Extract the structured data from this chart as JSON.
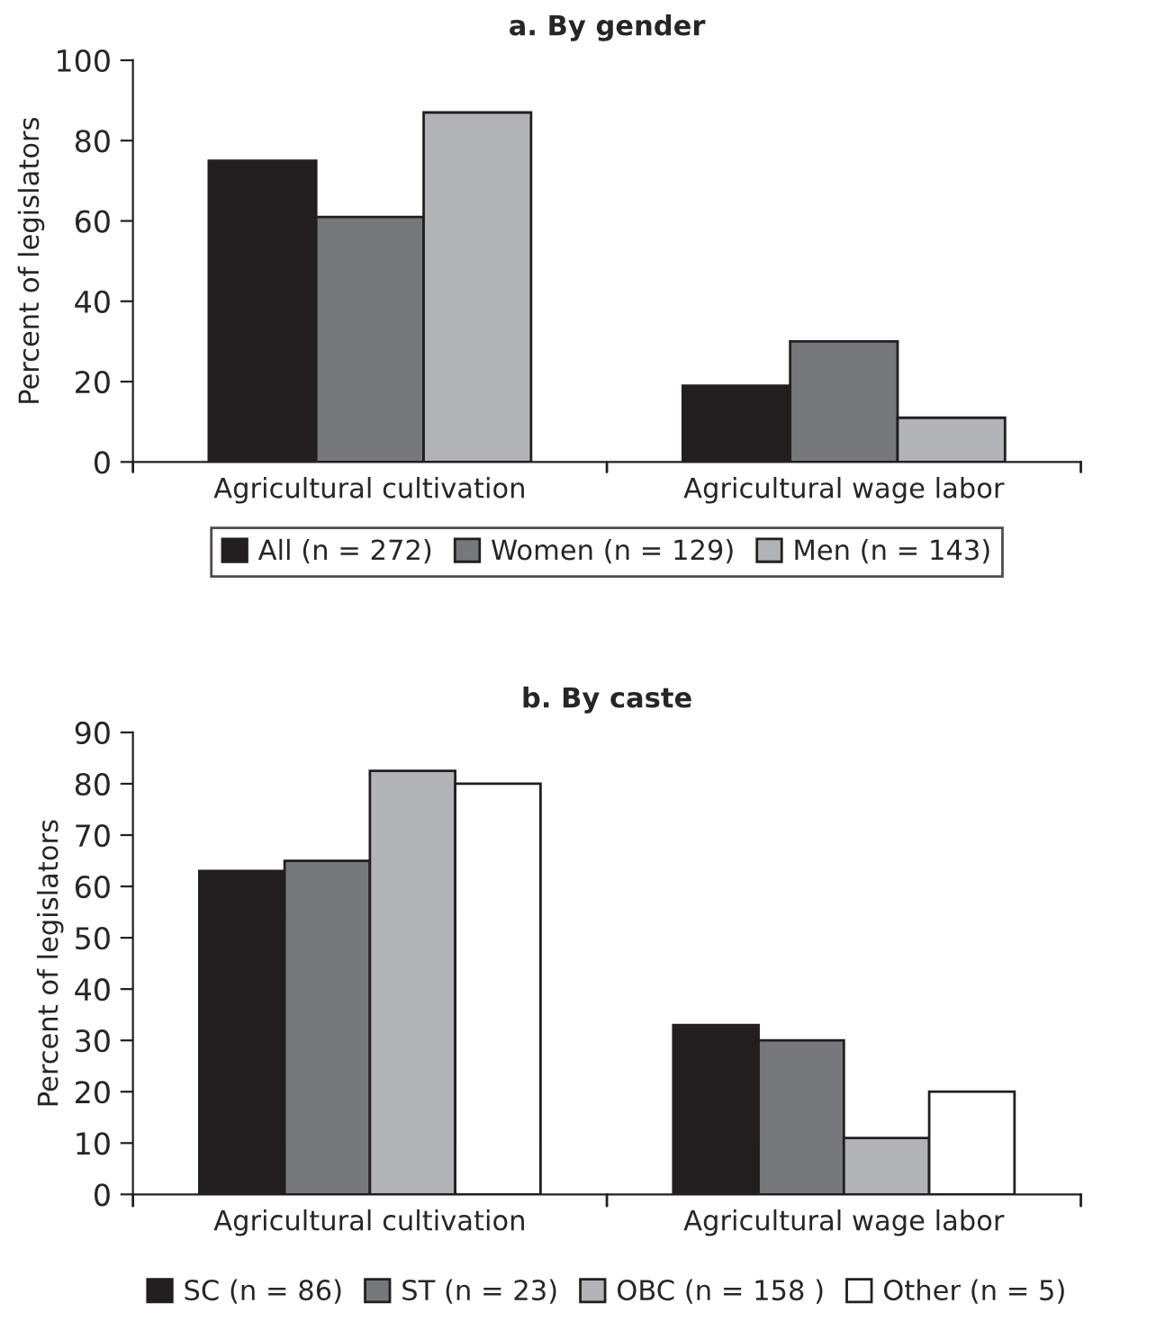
{
  "chart_data": [
    {
      "type": "bar",
      "title": "a. By gender",
      "ylabel": "Percent of legislators",
      "categories": [
        "Agricultural cultivation",
        "Agricultural wage labor"
      ],
      "series": [
        {
          "name": "All (n = 272)",
          "color": "#231f20",
          "values": [
            75,
            19
          ]
        },
        {
          "name": "Women (n = 129)",
          "color": "#77787b",
          "values": [
            61,
            30
          ]
        },
        {
          "name": "Men (n = 143)",
          "color": "#b1b3b6",
          "values": [
            87,
            11
          ]
        }
      ],
      "ylim": [
        0,
        100
      ],
      "yticks": [
        0,
        20,
        40,
        60,
        80,
        100
      ],
      "grid": false,
      "legend": "bottom"
    },
    {
      "type": "bar",
      "title": "b. By caste",
      "ylabel": "Percent of legislators",
      "categories": [
        "Agricultural cultivation",
        "Agricultural wage labor"
      ],
      "series": [
        {
          "name": "SC (n = 86)",
          "color": "#231f20",
          "values": [
            63,
            33
          ]
        },
        {
          "name": "ST (n = 23)",
          "color": "#77787b",
          "values": [
            65,
            30
          ]
        },
        {
          "name": "OBC (n = 158 )",
          "color": "#b1b3b6",
          "values": [
            82.5,
            11
          ]
        },
        {
          "name": "Other (n = 5)",
          "color": "#ffffff",
          "values": [
            80,
            20
          ]
        }
      ],
      "ylim": [
        0,
        90
      ],
      "yticks": [
        0,
        10,
        20,
        30,
        40,
        50,
        60,
        70,
        80,
        90
      ],
      "grid": false,
      "legend": "bottom"
    }
  ]
}
